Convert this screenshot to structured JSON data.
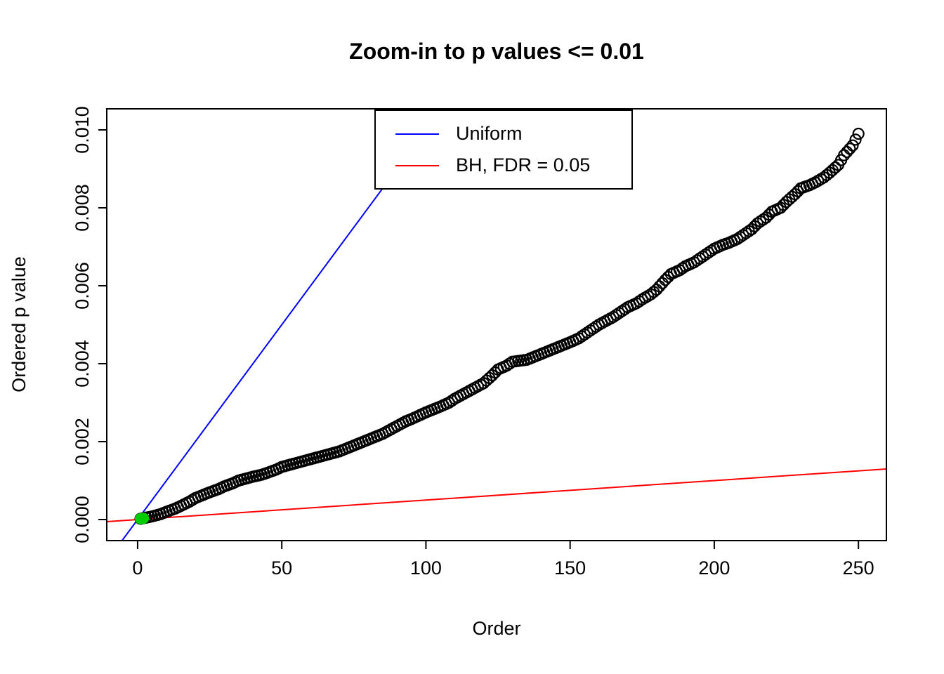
{
  "chart_data": {
    "type": "scatter",
    "title": "Zoom-in to p values <= 0.01",
    "xlabel": "Order",
    "ylabel": "Ordered p value",
    "xlim": [
      -10.7,
      259.7
    ],
    "ylim": [
      -0.00054,
      0.01054
    ],
    "x_ticks": [
      0,
      50,
      100,
      150,
      200,
      250
    ],
    "x_tick_labels": [
      "0",
      "50",
      "100",
      "150",
      "200",
      "250"
    ],
    "y_ticks": [
      0.0,
      0.002,
      0.004,
      0.006,
      0.008,
      0.01
    ],
    "y_tick_labels": [
      "0.000",
      "0.002",
      "0.004",
      "0.006",
      "0.008",
      "0.010"
    ],
    "grid": false,
    "legend": {
      "position": "top-center-inside",
      "entries": [
        {
          "label": "Uniform",
          "color": "#0000FF",
          "type": "line"
        },
        {
          "label": "BH, FDR = 0.05",
          "color": "#FF0000",
          "type": "line"
        }
      ]
    },
    "series": [
      {
        "name": "uniform-line",
        "type": "line",
        "color": "#0000FF",
        "slope": 0.0001,
        "intercept": 0
      },
      {
        "name": "bh-line",
        "type": "line",
        "color": "#FF0000",
        "slope": 5e-06,
        "intercept": 0
      },
      {
        "name": "ordered-p-values",
        "type": "scatter-open-circle",
        "color": "#000000",
        "n_points": 250,
        "anchors": [
          [
            1,
            2e-05
          ],
          [
            3,
            5e-05
          ],
          [
            5,
            8e-05
          ],
          [
            8,
            0.00014
          ],
          [
            10,
            0.0002
          ],
          [
            13,
            0.00028
          ],
          [
            15,
            0.00035
          ],
          [
            18,
            0.00046
          ],
          [
            20,
            0.00055
          ],
          [
            23,
            0.00064
          ],
          [
            25,
            0.0007
          ],
          [
            28,
            0.00078
          ],
          [
            30,
            0.00085
          ],
          [
            33,
            0.00093
          ],
          [
            35,
            0.001
          ],
          [
            38,
            0.00106
          ],
          [
            40,
            0.0011
          ],
          [
            43,
            0.00115
          ],
          [
            45,
            0.0012
          ],
          [
            48,
            0.00128
          ],
          [
            50,
            0.00135
          ],
          [
            55,
            0.00145
          ],
          [
            60,
            0.00155
          ],
          [
            65,
            0.00165
          ],
          [
            70,
            0.00175
          ],
          [
            75,
            0.0019
          ],
          [
            80,
            0.00205
          ],
          [
            85,
            0.0022
          ],
          [
            88,
            0.00232
          ],
          [
            90,
            0.0024
          ],
          [
            93,
            0.00252
          ],
          [
            95,
            0.00258
          ],
          [
            100,
            0.00275
          ],
          [
            105,
            0.0029
          ],
          [
            108,
            0.003
          ],
          [
            110,
            0.0031
          ],
          [
            115,
            0.0033
          ],
          [
            120,
            0.0035
          ],
          [
            123,
            0.0037
          ],
          [
            125,
            0.00385
          ],
          [
            128,
            0.00395
          ],
          [
            130,
            0.00405
          ],
          [
            135,
            0.0041
          ],
          [
            140,
            0.00425
          ],
          [
            145,
            0.0044
          ],
          [
            150,
            0.00455
          ],
          [
            153,
            0.00465
          ],
          [
            155,
            0.00475
          ],
          [
            158,
            0.0049
          ],
          [
            160,
            0.005
          ],
          [
            165,
            0.0052
          ],
          [
            168,
            0.00535
          ],
          [
            170,
            0.00545
          ],
          [
            173,
            0.00555
          ],
          [
            175,
            0.00565
          ],
          [
            178,
            0.00578
          ],
          [
            180,
            0.0059
          ],
          [
            183,
            0.00615
          ],
          [
            185,
            0.0063
          ],
          [
            188,
            0.0064
          ],
          [
            190,
            0.0065
          ],
          [
            193,
            0.0066
          ],
          [
            195,
            0.0067
          ],
          [
            198,
            0.00685
          ],
          [
            200,
            0.00695
          ],
          [
            203,
            0.00705
          ],
          [
            205,
            0.0071
          ],
          [
            208,
            0.0072
          ],
          [
            210,
            0.0073
          ],
          [
            213,
            0.00745
          ],
          [
            215,
            0.0076
          ],
          [
            218,
            0.00775
          ],
          [
            220,
            0.0079
          ],
          [
            223,
            0.008
          ],
          [
            225,
            0.00815
          ],
          [
            228,
            0.00835
          ],
          [
            230,
            0.0085
          ],
          [
            233,
            0.00858
          ],
          [
            235,
            0.00865
          ],
          [
            238,
            0.00878
          ],
          [
            240,
            0.0089
          ],
          [
            243,
            0.0091
          ],
          [
            245,
            0.00935
          ],
          [
            248,
            0.0096
          ],
          [
            250,
            0.0099
          ]
        ]
      },
      {
        "name": "significant-points",
        "type": "scatter-filled",
        "color": "#00CC00",
        "points": [
          [
            1,
            2e-05
          ],
          [
            2,
            3.2e-05
          ]
        ]
      }
    ]
  }
}
